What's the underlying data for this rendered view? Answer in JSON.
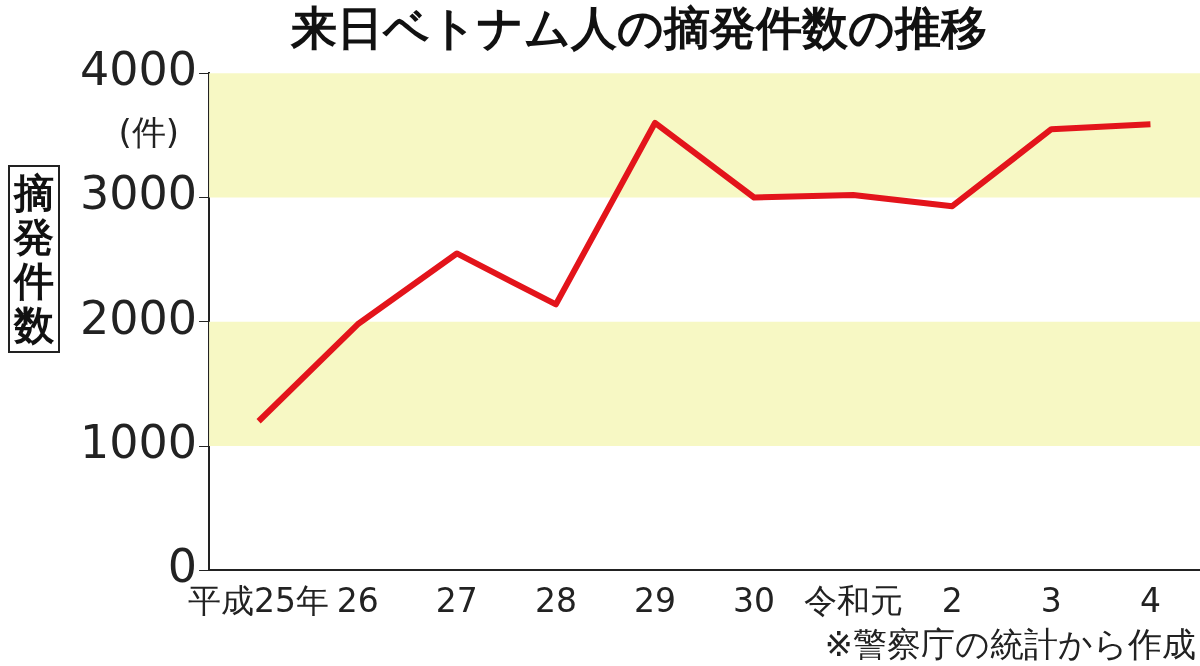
{
  "chart_data": {
    "type": "line",
    "title": "来日ベトナム人の摘発件数の推移",
    "ylabel": "摘発件数",
    "annotations": [
      "(件)",
      "※警察庁の統計から作成"
    ],
    "categories": [
      "平成25年",
      "26",
      "27",
      "28",
      "29",
      "30",
      "令和元",
      "2",
      "3",
      "4"
    ],
    "series": [
      {
        "color": "#e3141b",
        "values": [
          1200,
          1980,
          2550,
          2140,
          3600,
          3000,
          3020,
          2930,
          3550,
          3590
        ]
      }
    ],
    "ylim": [
      0,
      4000
    ],
    "yticks": [
      0,
      1000,
      2000,
      3000,
      4000
    ],
    "bands": [
      {
        "axis": "y",
        "from": 1000,
        "to": 2000,
        "color": "#f7f8c4"
      },
      {
        "axis": "y",
        "from": 3000,
        "to": 4000,
        "color": "#f7f8c4"
      }
    ],
    "grid": false,
    "legend": false,
    "marker": "none",
    "line_style": "solid"
  }
}
